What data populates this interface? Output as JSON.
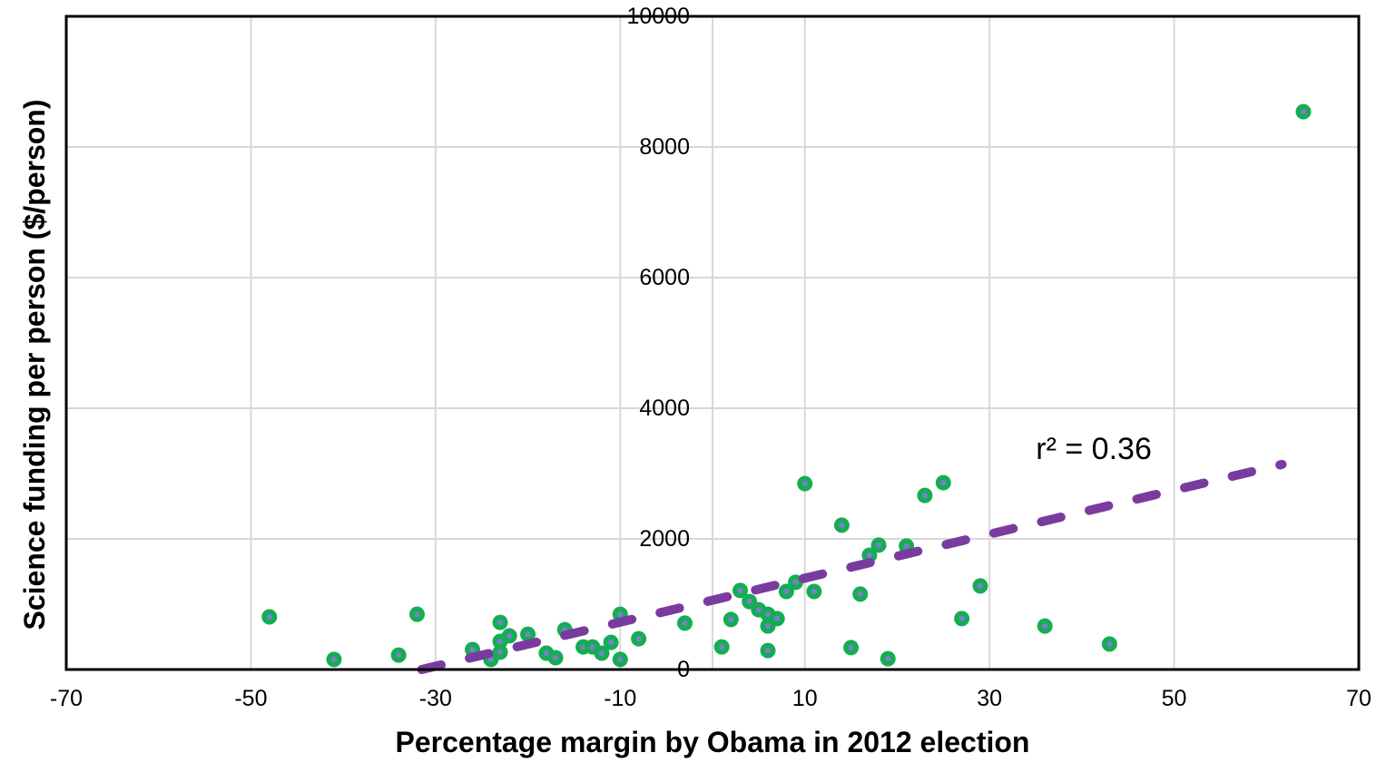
{
  "chart_data": {
    "type": "scatter",
    "title": "",
    "xlabel": "Percentage margin by Obama in 2012 election",
    "ylabel": "Science funding per person ($/person)",
    "xlim": [
      -70,
      70
    ],
    "ylim": [
      0,
      10000
    ],
    "xticks": [
      -70,
      -50,
      -30,
      -10,
      10,
      30,
      50,
      70
    ],
    "yticks": [
      0,
      2000,
      4000,
      6000,
      8000,
      10000
    ],
    "xgrid_extra": [
      0
    ],
    "grid": true,
    "legend": "none",
    "colors": {
      "grid": "#D8D8D8",
      "axis": "#000000",
      "text": "#000000"
    },
    "annotation": {
      "text": "r² = 0.36",
      "x": 41.3,
      "y": 3375
    },
    "trendline": {
      "style": "dashed",
      "color": "#7A3B9E",
      "x1": -31.5,
      "y1": 0,
      "x2": 61.7,
      "y2": 3140
    },
    "series": [
      {
        "name": "states",
        "marker": {
          "fill": "#15AD54",
          "center_dot": "#7B80C8",
          "radius": 8.5,
          "dot_radius": 3.1
        },
        "points": [
          [
            -48,
            805
          ],
          [
            -41,
            155
          ],
          [
            -34,
            220
          ],
          [
            -32,
            845
          ],
          [
            -26,
            305
          ],
          [
            -24,
            155
          ],
          [
            -23,
            720
          ],
          [
            -23,
            430
          ],
          [
            -23,
            265
          ],
          [
            -22,
            515
          ],
          [
            -20,
            540
          ],
          [
            -18,
            250
          ],
          [
            -17,
            180
          ],
          [
            -16,
            610
          ],
          [
            -14,
            345
          ],
          [
            -13,
            345
          ],
          [
            -12,
            250
          ],
          [
            -11,
            415
          ],
          [
            -10,
            845
          ],
          [
            -10,
            155
          ],
          [
            -8,
            470
          ],
          [
            -3,
            710
          ],
          [
            1,
            345
          ],
          [
            2,
            765
          ],
          [
            3,
            1210
          ],
          [
            4,
            1040
          ],
          [
            5,
            915
          ],
          [
            6,
            845
          ],
          [
            6,
            665
          ],
          [
            6,
            290
          ],
          [
            7,
            780
          ],
          [
            8,
            1195
          ],
          [
            9,
            1335
          ],
          [
            10,
            2845
          ],
          [
            11,
            1195
          ],
          [
            14,
            2210
          ],
          [
            15,
            335
          ],
          [
            16,
            1155
          ],
          [
            17,
            1750
          ],
          [
            18,
            1905
          ],
          [
            19,
            165
          ],
          [
            21,
            1890
          ],
          [
            23,
            2665
          ],
          [
            25,
            2860
          ],
          [
            27,
            780
          ],
          [
            29,
            1280
          ],
          [
            36,
            665
          ],
          [
            43,
            390
          ],
          [
            64,
            8540
          ]
        ]
      }
    ]
  }
}
